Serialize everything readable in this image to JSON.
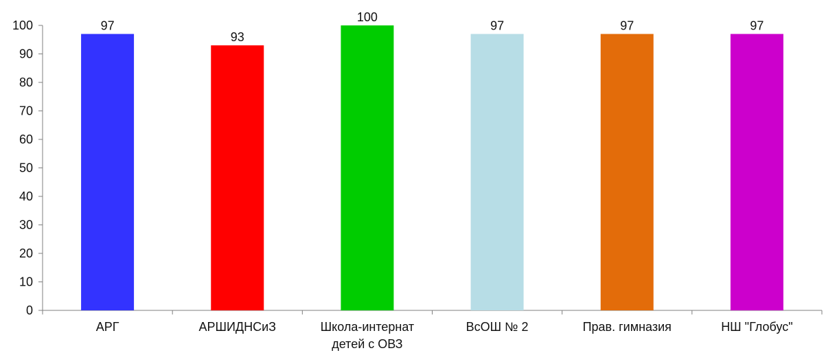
{
  "chart_data": {
    "type": "bar",
    "categories": [
      [
        "АРГ"
      ],
      [
        "АРШИДНСиЗ"
      ],
      [
        "Школа-интернат",
        "детей с ОВЗ"
      ],
      [
        "ВсОШ № 2"
      ],
      [
        "Прав. гимназия"
      ],
      [
        "НШ \"Глобус\""
      ]
    ],
    "values": [
      97,
      93,
      100,
      97,
      97,
      97
    ],
    "data_labels": [
      "97",
      "93",
      "100",
      "97",
      "97",
      "97"
    ],
    "colors": [
      "#3333ff",
      "#ff0000",
      "#00cc00",
      "#b7dde6",
      "#e36c0a",
      "#cc00cc"
    ],
    "ylim": [
      0,
      100
    ],
    "yticks": [
      0,
      10,
      20,
      30,
      40,
      50,
      60,
      70,
      80,
      90,
      100
    ],
    "title": "",
    "xlabel": "",
    "ylabel": "",
    "grid": false,
    "legend": false
  }
}
